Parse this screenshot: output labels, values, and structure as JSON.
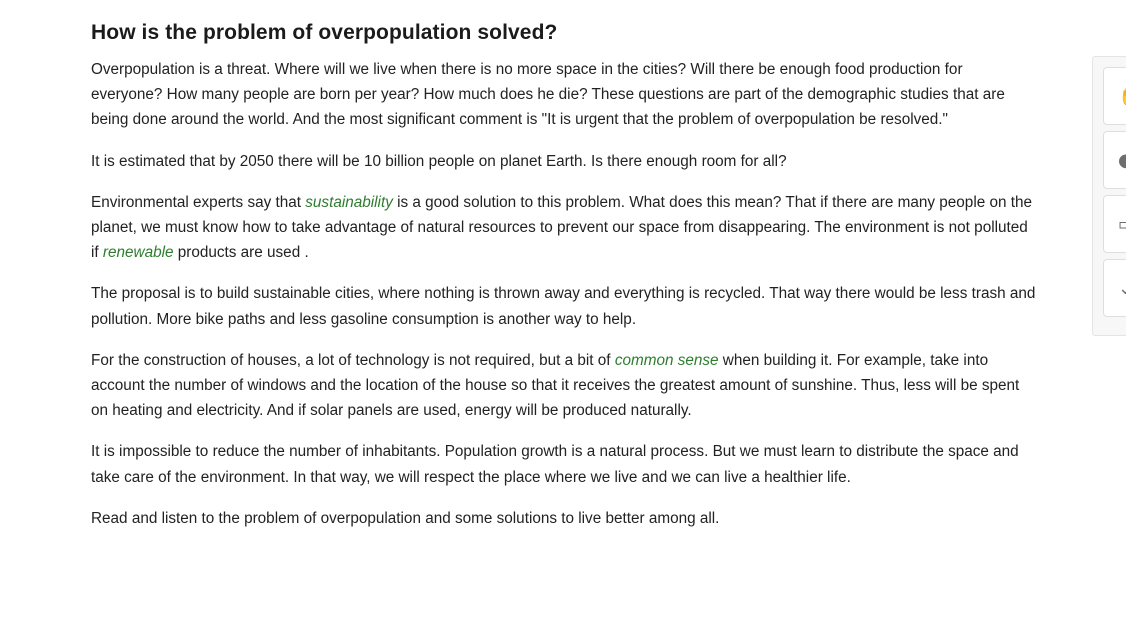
{
  "article": {
    "title": "How is the problem of overpopulation solved?",
    "p1": "Overpopulation is a threat. Where will we live when there is no more space in the cities? Will there be enough food production for everyone? How many people are born per year? How much does he die? These questions are part of the demographic studies that are being done around the world. And the most significant comment is \"It is urgent that the problem of overpopulation be resolved.\"",
    "p2": "It is estimated that by 2050 there will be 10 billion people on planet Earth. Is there enough room for all?",
    "p3": {
      "before": "Environmental experts say that ",
      "keyword1": "sustainability",
      "middle": " is a good solution to this problem. What does this mean? That if there are many people on the planet, we must know how to take advantage of natural resources to prevent our space from disappearing. The environment is not polluted if ",
      "keyword2": "renewable",
      "after": " products are used ."
    },
    "p4": "The proposal is to build sustainable cities, where nothing is thrown away and everything is recycled. That way there would be less trash and pollution. More bike paths and less gasoline consumption is another way to help.",
    "p5": {
      "before": "For the construction of houses, a lot of technology is not required, but a bit of ",
      "keyword": "common sense",
      "after": " when building it. For example, take into account the number of windows and the location of the house so that it receives the greatest amount of sunshine. Thus, less will be spent on heating and electricity. And if solar panels are used, energy will be produced naturally."
    },
    "p6": "It is impossible to reduce the number of inhabitants. Population growth is a natural process. But we must learn to distribute the space and take care of the environment. In that way, we will respect the place where we live and we can live a healthier life.",
    "p7": "Read and listen to the problem of overpopulation and some solutions to live better among all."
  },
  "side_toolbar": {
    "buttons": [
      {
        "icon": "thumbs-up-icon",
        "glyph": "✋"
      },
      {
        "icon": "globe-icon",
        "glyph": "●"
      },
      {
        "icon": "clipboard-icon",
        "glyph": "▭"
      },
      {
        "icon": "chevron-down-icon",
        "glyph": "⌄"
      }
    ]
  },
  "colors": {
    "keyword": "#2e7d2e",
    "text": "#222222",
    "title": "#1b1b1b"
  }
}
